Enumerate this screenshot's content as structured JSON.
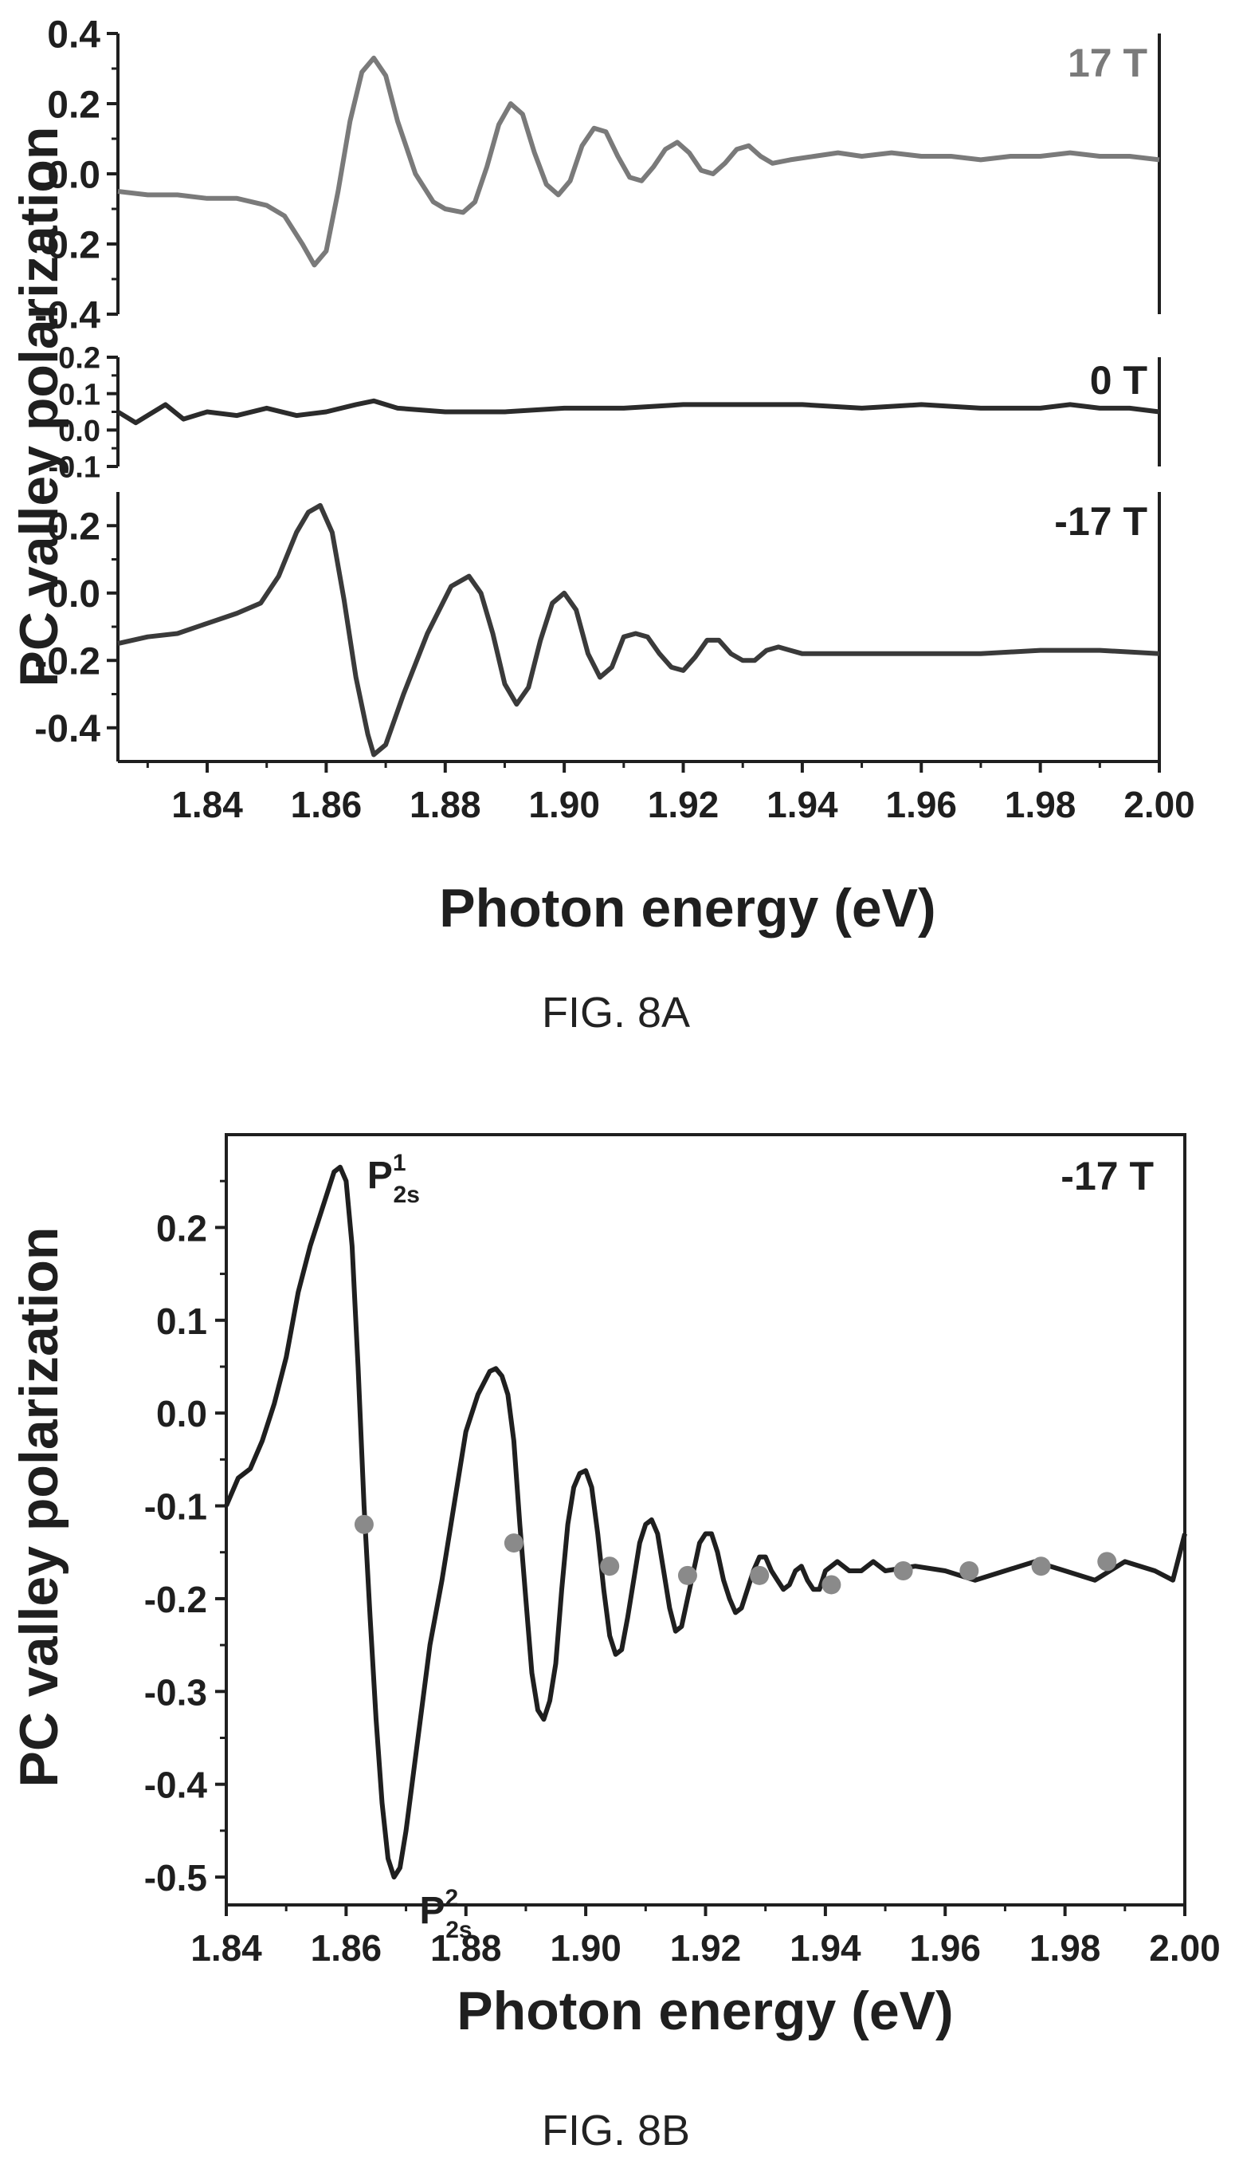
{
  "colors": {
    "axis": "#1f1f1f",
    "trace_17": "#7a7a7a",
    "trace_0": "#2b2b2b",
    "trace_m17": "#3a3a3a",
    "trace_b": "#1f1f1f",
    "markers": "#8a8a8a"
  },
  "chart_data": [
    {
      "type": "line",
      "caption": "FIG. 8A",
      "xlabel": "Photon energy (eV)",
      "ylabel": "PC valley polarization",
      "xlim": [
        1.825,
        2.0
      ],
      "xticks": [
        "1.84",
        "1.86",
        "1.88",
        "1.90",
        "1.92",
        "1.94",
        "1.96",
        "1.98",
        "2.00"
      ],
      "panels": [
        {
          "label": "17 T",
          "ylim": [
            -0.4,
            0.4
          ],
          "yticks": [
            "0.4",
            "0.2",
            "0.0",
            "-0.2",
            "-0.4"
          ],
          "x": [
            1.825,
            1.83,
            1.835,
            1.84,
            1.845,
            1.85,
            1.853,
            1.856,
            1.858,
            1.86,
            1.862,
            1.864,
            1.866,
            1.868,
            1.87,
            1.872,
            1.875,
            1.878,
            1.88,
            1.883,
            1.885,
            1.887,
            1.889,
            1.891,
            1.893,
            1.895,
            1.897,
            1.899,
            1.901,
            1.903,
            1.905,
            1.907,
            1.909,
            1.911,
            1.913,
            1.915,
            1.917,
            1.919,
            1.921,
            1.923,
            1.925,
            1.927,
            1.929,
            1.931,
            1.933,
            1.935,
            1.938,
            1.942,
            1.946,
            1.95,
            1.955,
            1.96,
            1.965,
            1.97,
            1.975,
            1.98,
            1.985,
            1.99,
            1.995,
            2.0
          ],
          "values": [
            -0.05,
            -0.06,
            -0.06,
            -0.07,
            -0.07,
            -0.09,
            -0.12,
            -0.2,
            -0.26,
            -0.22,
            -0.05,
            0.15,
            0.29,
            0.33,
            0.28,
            0.15,
            0.0,
            -0.08,
            -0.1,
            -0.11,
            -0.08,
            0.02,
            0.14,
            0.2,
            0.17,
            0.06,
            -0.03,
            -0.06,
            -0.02,
            0.08,
            0.13,
            0.12,
            0.05,
            -0.01,
            -0.02,
            0.02,
            0.07,
            0.09,
            0.06,
            0.01,
            0.0,
            0.03,
            0.07,
            0.08,
            0.05,
            0.03,
            0.04,
            0.05,
            0.06,
            0.05,
            0.06,
            0.05,
            0.05,
            0.04,
            0.05,
            0.05,
            0.06,
            0.05,
            0.05,
            0.04
          ]
        },
        {
          "label": "0 T",
          "ylim": [
            -0.1,
            0.2
          ],
          "yticks": [
            "0.2",
            "0.1",
            "0.0",
            "-0.1"
          ],
          "x": [
            1.825,
            1.828,
            1.83,
            1.833,
            1.836,
            1.84,
            1.845,
            1.85,
            1.855,
            1.86,
            1.865,
            1.868,
            1.872,
            1.88,
            1.89,
            1.9,
            1.91,
            1.92,
            1.93,
            1.94,
            1.95,
            1.96,
            1.97,
            1.98,
            1.985,
            1.99,
            1.995,
            2.0
          ],
          "values": [
            0.05,
            0.02,
            0.04,
            0.07,
            0.03,
            0.05,
            0.04,
            0.06,
            0.04,
            0.05,
            0.07,
            0.08,
            0.06,
            0.05,
            0.05,
            0.06,
            0.06,
            0.07,
            0.07,
            0.07,
            0.06,
            0.07,
            0.06,
            0.06,
            0.07,
            0.06,
            0.06,
            0.05
          ]
        },
        {
          "label": "-17 T",
          "ylim": [
            -0.5,
            0.3
          ],
          "yticks": [
            "0.2",
            "0.0",
            "-0.2",
            "-0.4"
          ],
          "x": [
            1.825,
            1.83,
            1.835,
            1.84,
            1.845,
            1.849,
            1.852,
            1.855,
            1.857,
            1.859,
            1.861,
            1.863,
            1.865,
            1.867,
            1.868,
            1.87,
            1.873,
            1.877,
            1.881,
            1.884,
            1.886,
            1.888,
            1.89,
            1.892,
            1.894,
            1.896,
            1.898,
            1.9,
            1.902,
            1.904,
            1.906,
            1.908,
            1.91,
            1.912,
            1.914,
            1.916,
            1.918,
            1.92,
            1.922,
            1.924,
            1.926,
            1.928,
            1.93,
            1.932,
            1.934,
            1.936,
            1.938,
            1.94,
            1.945,
            1.95,
            1.96,
            1.97,
            1.98,
            1.99,
            2.0
          ],
          "values": [
            -0.15,
            -0.13,
            -0.12,
            -0.09,
            -0.06,
            -0.03,
            0.05,
            0.18,
            0.24,
            0.26,
            0.18,
            -0.02,
            -0.25,
            -0.42,
            -0.48,
            -0.45,
            -0.3,
            -0.12,
            0.02,
            0.05,
            0.0,
            -0.12,
            -0.27,
            -0.33,
            -0.28,
            -0.14,
            -0.03,
            0.0,
            -0.05,
            -0.18,
            -0.25,
            -0.22,
            -0.13,
            -0.12,
            -0.13,
            -0.18,
            -0.22,
            -0.23,
            -0.19,
            -0.14,
            -0.14,
            -0.18,
            -0.2,
            -0.2,
            -0.17,
            -0.16,
            -0.17,
            -0.18,
            -0.18,
            -0.18,
            -0.18,
            -0.18,
            -0.17,
            -0.17,
            -0.18
          ]
        }
      ]
    },
    {
      "type": "line",
      "caption": "FIG. 8B",
      "xlabel": "Photon energy (eV)",
      "ylabel": "PC valley polarization",
      "xlim": [
        1.84,
        2.0
      ],
      "ylim": [
        -0.53,
        0.3
      ],
      "xticks": [
        "1.84",
        "1.86",
        "1.88",
        "1.90",
        "1.92",
        "1.94",
        "1.96",
        "1.98",
        "2.00"
      ],
      "yticks": [
        "0.2",
        "0.1",
        "0.0",
        "-0.1",
        "-0.2",
        "-0.3",
        "-0.4",
        "-0.5"
      ],
      "label": "-17 T",
      "annotations": [
        {
          "text": "P",
          "sup": "1",
          "sub": "2s",
          "x": 1.859,
          "y": 0.268
        },
        {
          "text": "P",
          "sup": "2",
          "sub": "2s",
          "x": 1.868,
          "y": -0.505
        }
      ],
      "x": [
        1.84,
        1.842,
        1.844,
        1.846,
        1.848,
        1.85,
        1.852,
        1.854,
        1.856,
        1.858,
        1.859,
        1.86,
        1.861,
        1.862,
        1.863,
        1.864,
        1.865,
        1.866,
        1.867,
        1.868,
        1.869,
        1.87,
        1.872,
        1.874,
        1.876,
        1.878,
        1.88,
        1.882,
        1.884,
        1.885,
        1.886,
        1.887,
        1.888,
        1.889,
        1.89,
        1.891,
        1.892,
        1.893,
        1.894,
        1.895,
        1.896,
        1.897,
        1.898,
        1.899,
        1.9,
        1.901,
        1.902,
        1.903,
        1.904,
        1.905,
        1.906,
        1.907,
        1.908,
        1.909,
        1.91,
        1.911,
        1.912,
        1.913,
        1.914,
        1.915,
        1.916,
        1.917,
        1.918,
        1.919,
        1.92,
        1.921,
        1.922,
        1.923,
        1.924,
        1.925,
        1.926,
        1.927,
        1.928,
        1.929,
        1.93,
        1.931,
        1.932,
        1.933,
        1.934,
        1.935,
        1.936,
        1.937,
        1.938,
        1.939,
        1.94,
        1.942,
        1.944,
        1.946,
        1.948,
        1.95,
        1.955,
        1.96,
        1.965,
        1.97,
        1.975,
        1.98,
        1.985,
        1.99,
        1.995,
        1.998,
        2.0
      ],
      "values": [
        -0.1,
        -0.07,
        -0.06,
        -0.03,
        0.01,
        0.06,
        0.13,
        0.18,
        0.22,
        0.26,
        0.265,
        0.25,
        0.18,
        0.05,
        -0.1,
        -0.22,
        -0.33,
        -0.42,
        -0.48,
        -0.5,
        -0.49,
        -0.45,
        -0.35,
        -0.25,
        -0.18,
        -0.1,
        -0.02,
        0.02,
        0.045,
        0.048,
        0.04,
        0.02,
        -0.03,
        -0.12,
        -0.2,
        -0.28,
        -0.32,
        -0.33,
        -0.31,
        -0.27,
        -0.19,
        -0.12,
        -0.08,
        -0.065,
        -0.062,
        -0.08,
        -0.13,
        -0.19,
        -0.24,
        -0.26,
        -0.255,
        -0.22,
        -0.18,
        -0.14,
        -0.12,
        -0.115,
        -0.13,
        -0.17,
        -0.21,
        -0.235,
        -0.23,
        -0.2,
        -0.17,
        -0.14,
        -0.13,
        -0.13,
        -0.15,
        -0.18,
        -0.2,
        -0.215,
        -0.21,
        -0.19,
        -0.17,
        -0.155,
        -0.155,
        -0.17,
        -0.18,
        -0.19,
        -0.185,
        -0.17,
        -0.165,
        -0.18,
        -0.19,
        -0.19,
        -0.17,
        -0.16,
        -0.17,
        -0.17,
        -0.16,
        -0.17,
        -0.165,
        -0.17,
        -0.18,
        -0.17,
        -0.16,
        -0.17,
        -0.18,
        -0.16,
        -0.17,
        -0.18,
        -0.13
      ],
      "markers": {
        "x": [
          1.863,
          1.888,
          1.904,
          1.917,
          1.929,
          1.941,
          1.953,
          1.964,
          1.976,
          1.987
        ],
        "values": [
          -0.12,
          -0.14,
          -0.165,
          -0.175,
          -0.175,
          -0.185,
          -0.17,
          -0.17,
          -0.165,
          -0.16
        ]
      }
    }
  ]
}
